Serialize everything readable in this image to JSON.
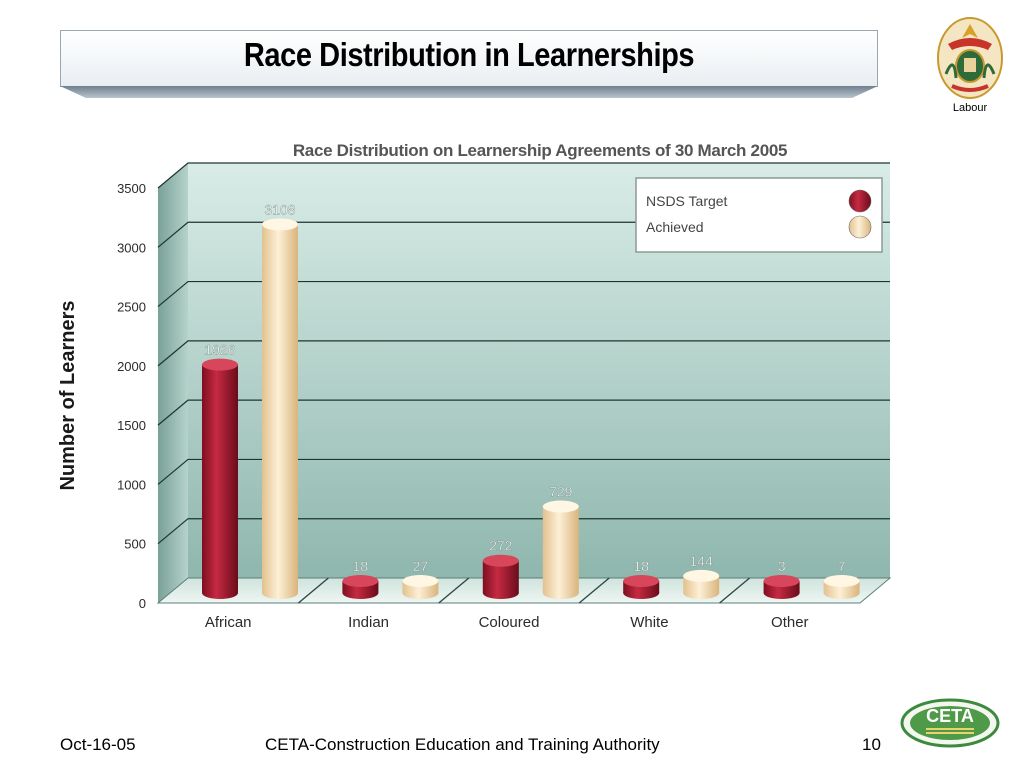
{
  "slide": {
    "title": "Race Distribution in Learnerships",
    "department": "Labour",
    "footer_date": "Oct-16-05",
    "footer_org": "CETA-Construction Education and Training Authority",
    "page_number": "10",
    "logo_text": "CETA"
  },
  "colors": {
    "target": "#a8182e",
    "achieved": "#f6ddb4",
    "wall_top": "#d9ece7",
    "wall_bottom": "#8fb7ae"
  },
  "chart_data": {
    "type": "bar",
    "title": "Race Distribution on Learnership Agreements of 30 March 2005",
    "ylabel": "Number of Learners",
    "xlabel": "",
    "categories": [
      "African",
      "Indian",
      "Coloured",
      "White",
      "Other"
    ],
    "series": [
      {
        "name": "NSDS Target",
        "values": [
          1926,
          18,
          272,
          18,
          3
        ],
        "labels": [
          "1926",
          "18",
          "272",
          "18",
          "3"
        ]
      },
      {
        "name": "Achieved",
        "values": [
          3108,
          27,
          729,
          144,
          7
        ],
        "labels": [
          "3108",
          "27",
          "729",
          "144",
          "7"
        ]
      }
    ],
    "ylim": [
      0,
      3500
    ],
    "yticks": [
      "0",
      "500",
      "1000",
      "1500",
      "2000",
      "2500",
      "3000",
      "3500"
    ],
    "grid": true,
    "legend": "top-right"
  }
}
